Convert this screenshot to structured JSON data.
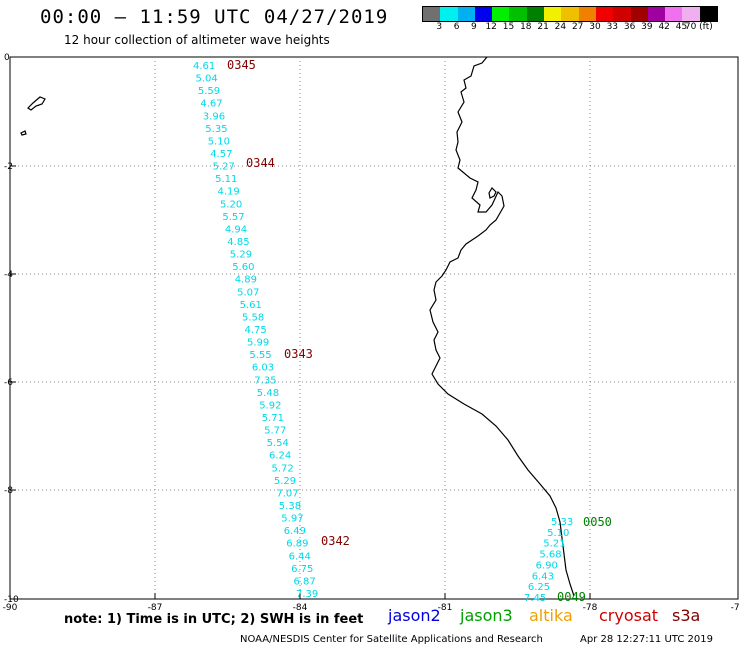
{
  "header": {
    "title": "00:00 – 11:59 UTC 04/27/2019",
    "subtitle": "12 hour collection of altimeter wave heights"
  },
  "scale": {
    "colors": [
      "#707070",
      "#00f0f0",
      "#00b0f0",
      "#0000f0",
      "#00f000",
      "#00c000",
      "#008000",
      "#f0f000",
      "#f0c000",
      "#f08000",
      "#f00000",
      "#d00000",
      "#a00000",
      "#a000a0",
      "#f070f0",
      "#f0b0f0",
      "#000000"
    ],
    "labels": [
      "3",
      "6",
      "9",
      "12",
      "15",
      "18",
      "21",
      "24",
      "27",
      "30",
      "33",
      "36",
      "39",
      "42",
      "45",
      "70 (ft)"
    ]
  },
  "map": {
    "lat_ticks": [
      "0",
      "-2",
      "-4",
      "-6",
      "-8",
      "-10"
    ],
    "lon_ticks": [
      "-90",
      "-87",
      "-84",
      "-81",
      "-78",
      "-75"
    ],
    "track_labels": [
      {
        "text": "0345",
        "color": "#800000"
      },
      {
        "text": "0344",
        "color": "#800000"
      },
      {
        "text": "0343",
        "color": "#800000"
      },
      {
        "text": "0342",
        "color": "#800000"
      },
      {
        "text": "0050",
        "color": "#008000"
      },
      {
        "text": "0049",
        "color": "#008000"
      }
    ],
    "track1_swh": [
      "4.61",
      "5.04",
      "5.59",
      "4.67",
      "3.96",
      "5.35",
      "5.10",
      "4.57",
      "5.27",
      "5.11",
      "4.19",
      "5.20",
      "5.57",
      "4.94",
      "4.85",
      "5.29",
      "5.60",
      "4.89",
      "5.07",
      "5.61",
      "5.58",
      "4.75",
      "5.99",
      "5.55",
      "6.03",
      "7.35",
      "5.48",
      "5.92",
      "5.71",
      "5.77",
      "5.54",
      "6.24",
      "5.72",
      "5.29",
      "7.07",
      "5.38",
      "5.97",
      "6.49",
      "6.89",
      "6.44",
      "6.75",
      "6.87",
      "7.39"
    ],
    "track2_swh": [
      "5.33",
      "5.10",
      "5.21",
      "5.68",
      "6.90",
      "6.43",
      "6.25",
      "7.45"
    ]
  },
  "footer": {
    "note": "note:  1) Time is in UTC;  2) SWH is in feet",
    "satellites": [
      {
        "name": "jason2",
        "color": "#0000e0"
      },
      {
        "name": "jason3",
        "color": "#00a000"
      },
      {
        "name": "altika",
        "color": "#f0a000"
      },
      {
        "name": "cryosat",
        "color": "#d00000"
      },
      {
        "name": "s3a",
        "color": "#800000"
      }
    ],
    "credit": "NOAA/NESDIS Center for Satellite Applications and Research",
    "timestamp": "Apr 28 12:27:11 UTC 2019"
  }
}
